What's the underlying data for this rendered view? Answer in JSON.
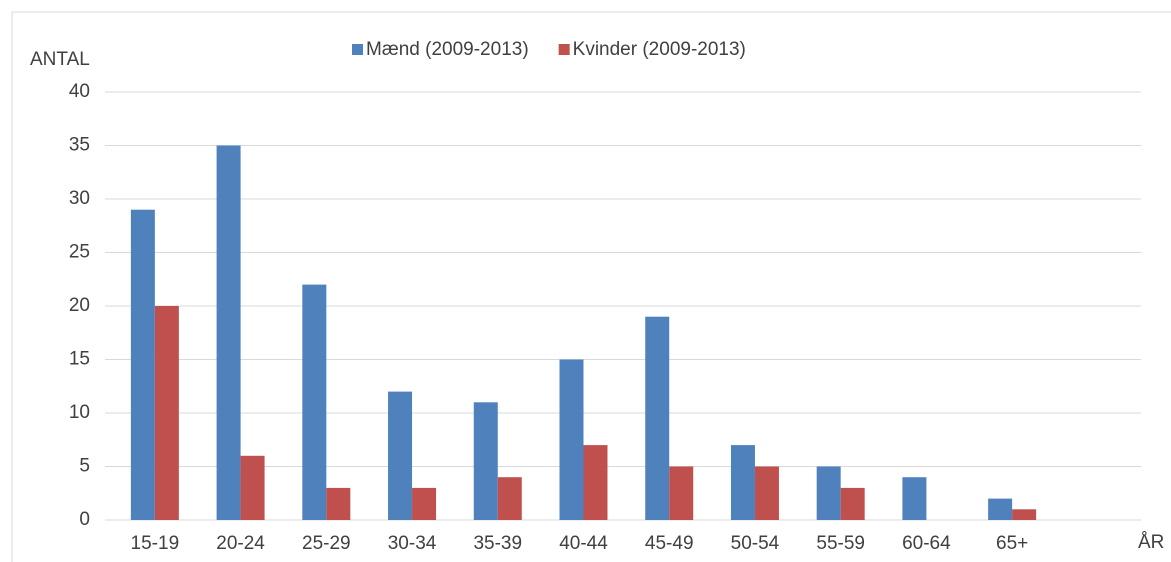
{
  "chart_data": {
    "type": "bar",
    "y_label": "ANTAL",
    "x_label": "ÅR",
    "categories": [
      "15-19",
      "20-24",
      "25-29",
      "30-34",
      "35-39",
      "40-44",
      "45-49",
      "50-54",
      "55-59",
      "60-64",
      "65+"
    ],
    "series": [
      {
        "name": "Mænd (2009-2013)",
        "color": "#4f81bd",
        "values": [
          29,
          35,
          22,
          12,
          11,
          15,
          19,
          7,
          5,
          4,
          2
        ]
      },
      {
        "name": "Kvinder (2009-2013)",
        "color": "#c0504d",
        "values": [
          20,
          6,
          3,
          3,
          4,
          7,
          5,
          5,
          3,
          0,
          1
        ]
      }
    ],
    "ylim": [
      0,
      40
    ],
    "yticks": [
      0,
      5,
      10,
      15,
      20,
      25,
      30,
      35,
      40
    ],
    "grid": true,
    "legend": "top"
  }
}
